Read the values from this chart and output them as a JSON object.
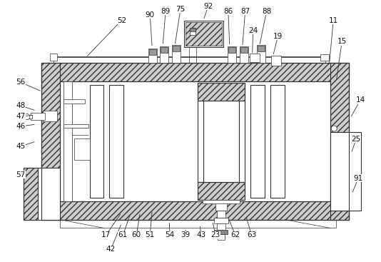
{
  "bg_color": "#ffffff",
  "lc": "#333333",
  "hc": "#aaaaaa",
  "fig_w": 5.34,
  "fig_h": 3.67,
  "dpi": 100,
  "label_font": 7.5
}
